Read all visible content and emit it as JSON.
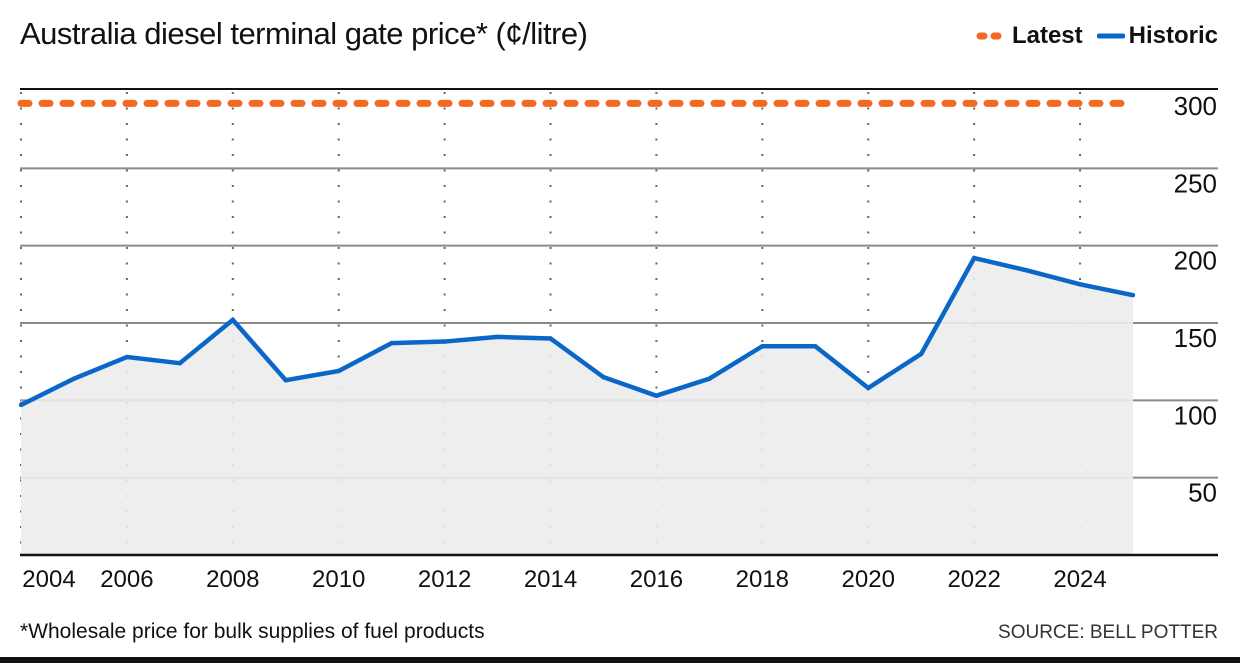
{
  "chart_data": {
    "type": "line",
    "title": "Australia diesel terminal gate price* (¢/litre)",
    "xlabel": "",
    "ylabel": "",
    "ylim": [
      0,
      300
    ],
    "xlim": [
      2004,
      2025
    ],
    "yticks": [
      "50",
      "100",
      "150",
      "200",
      "250",
      "300"
    ],
    "ytick_values": [
      50,
      100,
      150,
      200,
      250,
      300
    ],
    "xticks": [
      "2004",
      "2006",
      "2008",
      "2010",
      "2012",
      "2014",
      "2016",
      "2018",
      "2020",
      "2022",
      "2024"
    ],
    "xtick_values": [
      2004,
      2006,
      2008,
      2010,
      2012,
      2014,
      2016,
      2018,
      2020,
      2022,
      2024
    ],
    "grid": true,
    "legend_position": "top-right",
    "series": [
      {
        "name": "Historic",
        "style": "solid-area",
        "color": "#0a66c8",
        "x": [
          2004,
          2005,
          2006,
          2007,
          2008,
          2009,
          2010,
          2011,
          2012,
          2013,
          2014,
          2015,
          2016,
          2017,
          2018,
          2019,
          2020,
          2021,
          2022,
          2023,
          2024,
          2025
        ],
        "values": [
          97,
          114,
          128,
          124,
          152,
          113,
          119,
          137,
          138,
          141,
          140,
          115,
          103,
          114,
          135,
          135,
          108,
          130,
          192,
          184,
          175,
          168
        ]
      },
      {
        "name": "Latest",
        "style": "dashed",
        "color": "#f26a21",
        "value": 292
      }
    ]
  },
  "legend": {
    "latest": "Latest",
    "historic": "Historic"
  },
  "footnote": "*Wholesale price for bulk supplies of fuel products",
  "source": "SOURCE: BELL POTTER"
}
